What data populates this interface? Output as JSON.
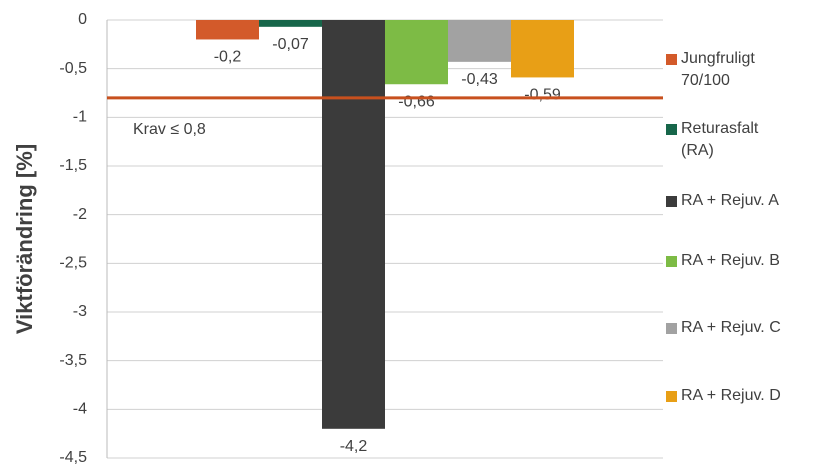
{
  "chart_data": {
    "type": "bar",
    "y_axis_label": "Viktförändring [%]",
    "categories": [
      null
    ],
    "series": [
      {
        "name": "Jungfruligt 70/100",
        "color": "#d35a2a",
        "values": [
          -0.2
        ],
        "value_labels": [
          "-0,2"
        ]
      },
      {
        "name": "Returasfalt (RA)",
        "color": "#17664a",
        "values": [
          -0.07
        ],
        "value_labels": [
          "-0,07"
        ]
      },
      {
        "name": "RA + Rejuv. A",
        "color": "#3b3b3b",
        "values": [
          -4.2
        ],
        "value_labels": [
          "-4,2"
        ]
      },
      {
        "name": "RA + Rejuv. B",
        "color": "#7dbb45",
        "values": [
          -0.66
        ],
        "value_labels": [
          "-0,66"
        ]
      },
      {
        "name": "RA + Rejuv. C",
        "color": "#a2a2a2",
        "values": [
          -0.43
        ],
        "value_labels": [
          "-0,43"
        ]
      },
      {
        "name": "RA + Rejuv. D",
        "color": "#e89f16",
        "values": [
          -0.59
        ],
        "value_labels": [
          "-0,59"
        ]
      }
    ],
    "ylim": [
      -4.5,
      0
    ],
    "yticks": [
      0,
      {
        "value": -0.5,
        "label": "-0,5"
      },
      -1,
      {
        "value": -1.5,
        "label": "-1,5"
      },
      -2,
      {
        "value": -2.5,
        "label": "-2,5"
      },
      -3,
      {
        "value": -3.5,
        "label": "-3,5"
      },
      -4,
      {
        "value": -4.5,
        "label": "-4,5"
      }
    ],
    "grid": true,
    "reference_line": {
      "value": -0.8,
      "label": "Krav ≤ 0,8",
      "color": "#c8501e"
    },
    "legend": "right"
  }
}
